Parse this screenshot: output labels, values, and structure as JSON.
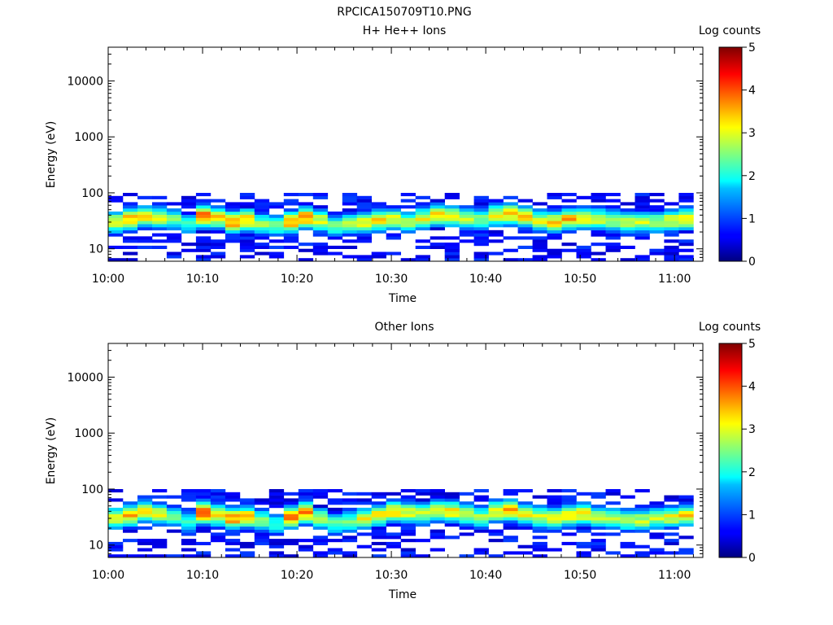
{
  "figure": {
    "title": "RPCICA150709T10.PNG"
  },
  "chart_data": [
    {
      "type": "heatmap",
      "title": "H+ He++ Ions",
      "xlabel": "Time",
      "ylabel": "Energy (eV)",
      "x_ticks": [
        "10:00",
        "10:10",
        "10:20",
        "10:30",
        "10:40",
        "10:50",
        "11:00"
      ],
      "y_ticks": [
        "10",
        "100",
        "1000",
        "10000"
      ],
      "y_scale": "log",
      "ylim": [
        6,
        40000
      ],
      "xlim_minutes": [
        0,
        63
      ],
      "colorbar": {
        "label": "Log counts",
        "ticks": [
          "0",
          "1",
          "2",
          "3",
          "4",
          "5"
        ],
        "range": [
          0,
          5
        ]
      },
      "band_center_eV": [
        30,
        34,
        38,
        36,
        34,
        28,
        38,
        36,
        30,
        33,
        28,
        26,
        30,
        36,
        32,
        26,
        28,
        30,
        32,
        34,
        30,
        35,
        40,
        38,
        36,
        34,
        40,
        42,
        38,
        32,
        30,
        34,
        36,
        34,
        32,
        30,
        30,
        30,
        32,
        34
      ],
      "band_peak_log_counts": [
        3.0,
        3.4,
        3.2,
        3.0,
        2.4,
        2.2,
        4.0,
        3.2,
        3.6,
        3.4,
        2.6,
        2.4,
        3.6,
        3.8,
        3.0,
        2.4,
        2.6,
        3.0,
        3.2,
        3.0,
        2.8,
        3.0,
        3.2,
        3.0,
        2.8,
        2.6,
        3.2,
        3.4,
        3.2,
        3.0,
        3.2,
        3.4,
        3.2,
        3.0,
        2.8,
        3.0,
        2.8,
        2.8,
        3.0,
        3.2
      ]
    },
    {
      "type": "heatmap",
      "title": "Other Ions",
      "xlabel": "Time",
      "ylabel": "Energy (eV)",
      "x_ticks": [
        "10:00",
        "10:10",
        "10:20",
        "10:30",
        "10:40",
        "10:50",
        "11:00"
      ],
      "y_ticks": [
        "10",
        "100",
        "1000",
        "10000"
      ],
      "y_scale": "log",
      "ylim": [
        6,
        40000
      ],
      "xlim_minutes": [
        0,
        63
      ],
      "colorbar": {
        "label": "Log counts",
        "ticks": [
          "0",
          "1",
          "2",
          "3",
          "4",
          "5"
        ],
        "range": [
          0,
          5
        ]
      },
      "band_center_eV": [
        30,
        34,
        40,
        36,
        32,
        26,
        38,
        34,
        30,
        32,
        28,
        24,
        32,
        38,
        30,
        24,
        26,
        30,
        34,
        40,
        38,
        36,
        42,
        40,
        36,
        32,
        40,
        42,
        36,
        32,
        30,
        34,
        36,
        32,
        30,
        28,
        28,
        30,
        32,
        34
      ],
      "band_peak_log_counts": [
        3.0,
        3.4,
        3.2,
        3.0,
        2.4,
        2.2,
        4.0,
        3.2,
        3.6,
        3.4,
        2.6,
        2.2,
        3.8,
        3.6,
        2.8,
        2.4,
        2.6,
        3.0,
        3.2,
        3.4,
        3.0,
        2.8,
        3.0,
        3.2,
        3.0,
        2.6,
        3.2,
        3.4,
        3.0,
        3.0,
        3.2,
        3.4,
        3.2,
        2.8,
        2.8,
        2.8,
        2.8,
        2.8,
        3.0,
        3.2
      ]
    }
  ]
}
